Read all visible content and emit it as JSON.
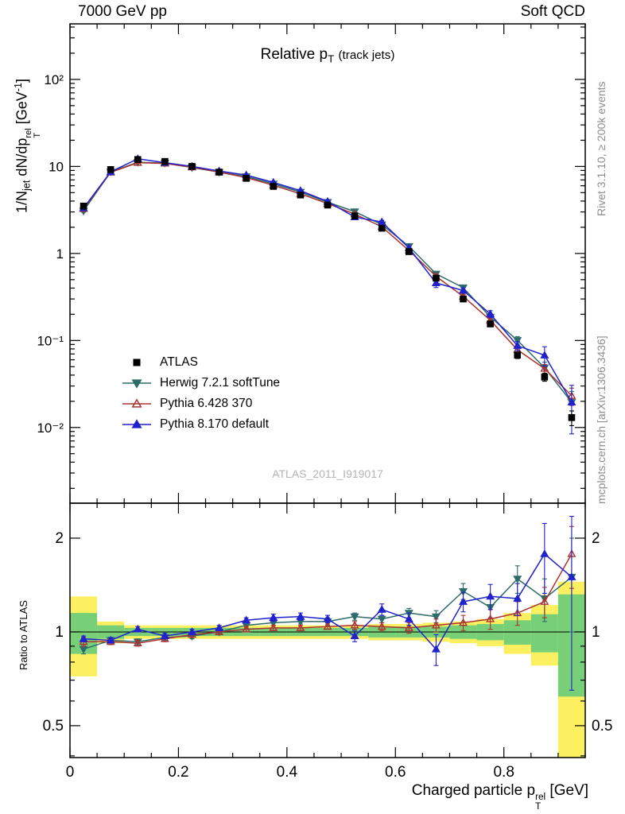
{
  "header": {
    "left": "7000 GeV pp",
    "right": "Soft QCD"
  },
  "watermark": "ATLAS_2011_I919017",
  "side_notes": {
    "right_top": "Rivet 3.1.10, ≥ 200k events",
    "right_bottom": "mcplots.cern.ch [arXiv:1306.3436]"
  },
  "rich": {
    "title": [
      {
        "t": "Relative p"
      },
      {
        "sub": "T"
      },
      {
        "t": " "
      },
      {
        "t": "(track jets)",
        "small": true
      }
    ],
    "ylabel": [
      {
        "t": "1/N"
      },
      {
        "sub": "jet"
      },
      {
        "t": " dN/dp"
      },
      {
        "stack": {
          "top": "rel",
          "bottom": "T"
        }
      },
      {
        "t": " [GeV"
      },
      {
        "sup": "-1"
      },
      {
        "t": "]"
      }
    ],
    "xlabel": [
      {
        "t": "Charged particle p"
      },
      {
        "stack": {
          "top": "rel",
          "bottom": "T"
        }
      },
      {
        "t": " [GeV]"
      }
    ]
  },
  "chart_data": {
    "type": "line",
    "title": "Relative pT (track jets)",
    "xlabel": "Charged particle pT^rel [GeV]",
    "ylabel": "1/N_jet dN/dpT^rel [GeV^-1]",
    "ratio_ylabel": "Ratio to ATLAS",
    "xlim": [
      0,
      0.95
    ],
    "xticks_major": [
      0,
      0.2,
      0.4,
      0.6,
      0.8
    ],
    "xtick_labels": [
      "0",
      "0.2",
      "0.4",
      "0.6",
      "0.8"
    ],
    "xticks_minor_step": 0.05,
    "main_yscale": "log",
    "main_ylim": [
      0.00135,
      435
    ],
    "main_yticks": [
      {
        "v": 100,
        "label": "10²"
      },
      {
        "v": 10,
        "label": "10"
      },
      {
        "v": 1,
        "label": "1"
      },
      {
        "v": 0.1,
        "label": "10⁻¹"
      },
      {
        "v": 0.01,
        "label": "10⁻²"
      }
    ],
    "ratio_yscale": "log",
    "ratio_ylim": [
      0.395,
      2.59
    ],
    "ratio_yticks": [
      {
        "v": 2,
        "label": "2"
      },
      {
        "v": 1,
        "label": "1"
      },
      {
        "v": 0.5,
        "label": "0.5"
      }
    ],
    "ratio_minor_ticks": [
      0.4,
      0.5,
      0.6,
      0.7,
      0.8,
      0.9,
      1,
      2
    ],
    "ratio_ref_line": 1,
    "bin_half_width": 0.025,
    "x": [
      0.025,
      0.075,
      0.125,
      0.175,
      0.225,
      0.275,
      0.325,
      0.375,
      0.425,
      0.475,
      0.525,
      0.575,
      0.625,
      0.675,
      0.725,
      0.775,
      0.825,
      0.875,
      0.925
    ],
    "reference": {
      "name": "ATLAS",
      "color": "#000000",
      "marker": "square",
      "y": [
        3.5,
        9.2,
        12.0,
        11.4,
        10.0,
        8.6,
        7.3,
        5.9,
        4.7,
        3.6,
        2.7,
        1.95,
        1.05,
        0.52,
        0.3,
        0.155,
        0.068,
        0.038,
        0.013
      ],
      "yerr": [
        0.2,
        0.4,
        0.5,
        0.45,
        0.4,
        0.34,
        0.29,
        0.24,
        0.19,
        0.15,
        0.11,
        0.08,
        0.05,
        0.03,
        0.018,
        0.01,
        0.006,
        0.004,
        0.0025
      ]
    },
    "series": [
      {
        "name": "Herwig 7.2.1 softTune",
        "color": "#2e6b6b",
        "marker": "triangle-down",
        "fill": true,
        "ratio": [
          0.88,
          0.94,
          0.93,
          0.96,
          0.97,
          1.0,
          1.05,
          1.07,
          1.08,
          1.08,
          1.12,
          1.1,
          1.15,
          1.12,
          1.35,
          1.2,
          1.48,
          1.28,
          1.5
        ],
        "ratio_err": [
          0.03,
          0.02,
          0.02,
          0.02,
          0.02,
          0.02,
          0.02,
          0.02,
          0.02,
          0.03,
          0.03,
          0.03,
          0.04,
          0.05,
          0.08,
          0.09,
          0.15,
          0.2,
          0.5
        ]
      },
      {
        "name": "Pythia 6.428 370",
        "color": "#aa3333",
        "marker": "triangle-up",
        "fill": false,
        "ratio": [
          0.93,
          0.93,
          0.92,
          0.95,
          0.98,
          1.0,
          1.02,
          1.03,
          1.03,
          1.04,
          1.05,
          1.04,
          1.03,
          1.05,
          1.07,
          1.1,
          1.15,
          1.25,
          1.78
        ],
        "ratio_err": [
          0.03,
          0.02,
          0.02,
          0.02,
          0.02,
          0.02,
          0.02,
          0.02,
          0.02,
          0.02,
          0.03,
          0.03,
          0.04,
          0.05,
          0.06,
          0.08,
          0.1,
          0.14,
          0.4
        ]
      },
      {
        "name": "Pythia 8.170 default",
        "color": "#2222cc",
        "marker": "triangle-up",
        "fill": true,
        "ratio": [
          0.95,
          0.94,
          1.02,
          0.97,
          1.0,
          1.03,
          1.09,
          1.11,
          1.12,
          1.1,
          0.97,
          1.18,
          1.1,
          0.88,
          1.25,
          1.3,
          1.28,
          1.78,
          1.5
        ],
        "ratio_err": [
          0.02,
          0.02,
          0.02,
          0.02,
          0.02,
          0.02,
          0.02,
          0.03,
          0.03,
          0.03,
          0.04,
          0.05,
          0.05,
          0.1,
          0.09,
          0.12,
          0.15,
          0.45,
          0.85
        ]
      }
    ],
    "bands": {
      "yellow": {
        "color": "#fcf060",
        "lo": [
          0.72,
          0.92,
          0.95,
          0.95,
          0.95,
          0.95,
          0.95,
          0.95,
          0.95,
          0.95,
          0.95,
          0.94,
          0.94,
          0.93,
          0.92,
          0.9,
          0.85,
          0.78,
          0.35
        ],
        "hi": [
          1.3,
          1.08,
          1.05,
          1.05,
          1.05,
          1.05,
          1.05,
          1.05,
          1.05,
          1.05,
          1.05,
          1.06,
          1.06,
          1.07,
          1.08,
          1.1,
          1.15,
          1.22,
          1.45
        ]
      },
      "green": {
        "color": "#77d077",
        "lo": [
          0.85,
          0.95,
          0.97,
          0.97,
          0.97,
          0.97,
          0.97,
          0.97,
          0.97,
          0.97,
          0.97,
          0.96,
          0.96,
          0.96,
          0.95,
          0.94,
          0.91,
          0.86,
          0.62
        ],
        "hi": [
          1.15,
          1.05,
          1.03,
          1.03,
          1.03,
          1.03,
          1.03,
          1.03,
          1.03,
          1.03,
          1.03,
          1.04,
          1.04,
          1.04,
          1.05,
          1.06,
          1.09,
          1.14,
          1.32
        ]
      }
    },
    "legend_position": "inside-left-middle"
  }
}
